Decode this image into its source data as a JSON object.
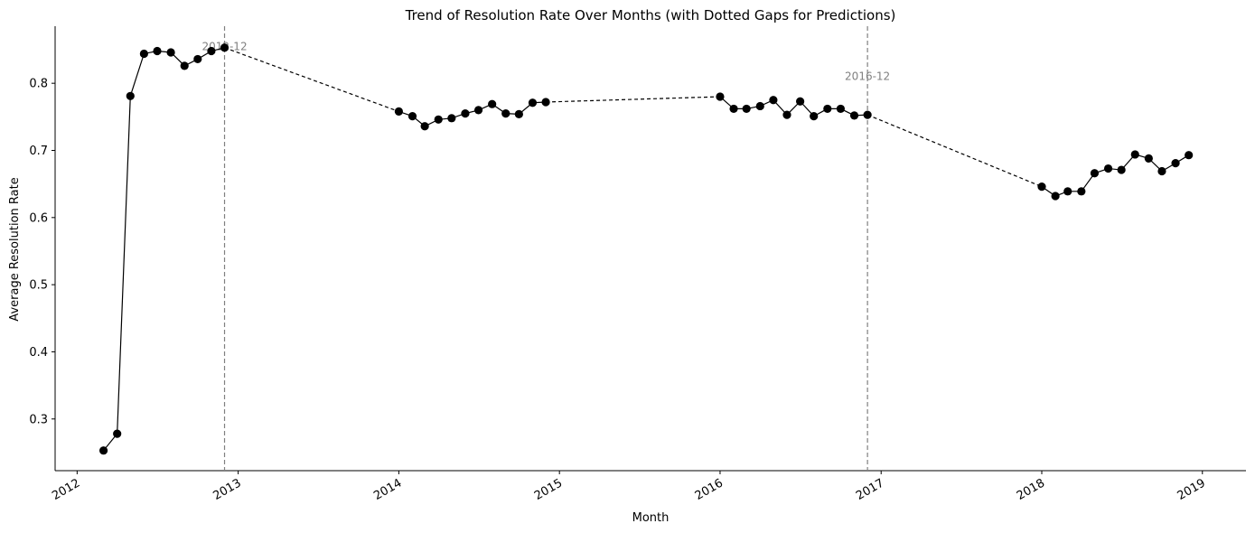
{
  "chart_data": {
    "type": "line",
    "title": "Trend of Resolution Rate Over Months (with Dotted Gaps for Predictions)",
    "xlabel": "Month",
    "ylabel": "Average Resolution Rate",
    "xlim": [
      "2011-11-12",
      "2019-04-10"
    ],
    "ylim": [
      0.223,
      0.885
    ],
    "x_ticks": [
      "2012",
      "2013",
      "2014",
      "2015",
      "2016",
      "2017",
      "2018",
      "2019"
    ],
    "y_ticks": [
      "0.3",
      "0.4",
      "0.5",
      "0.6",
      "0.7",
      "0.8"
    ],
    "grid": false,
    "line_color": "#000000",
    "marker_color": "#000000",
    "annotation_color": "#808080",
    "annotations": [
      {
        "x": "2012-12-01",
        "label": "2012-12",
        "label_y": 0.855
      },
      {
        "x": "2016-12-01",
        "label": "2016-12",
        "label_y": 0.81
      }
    ],
    "segments": [
      {
        "x": [
          "2012-03-01",
          "2012-04-01",
          "2012-05-01",
          "2012-06-01",
          "2012-07-01",
          "2012-08-01",
          "2012-09-01",
          "2012-10-01",
          "2012-11-01",
          "2012-12-01"
        ],
        "y": [
          0.253,
          0.278,
          0.781,
          0.844,
          0.848,
          0.846,
          0.826,
          0.836,
          0.848,
          0.853
        ]
      },
      {
        "x": [
          "2014-01-01",
          "2014-02-01",
          "2014-03-01",
          "2014-04-01",
          "2014-05-01",
          "2014-06-01",
          "2014-07-01",
          "2014-08-01",
          "2014-09-01",
          "2014-10-01",
          "2014-11-01",
          "2014-12-01"
        ],
        "y": [
          0.758,
          0.751,
          0.736,
          0.746,
          0.748,
          0.755,
          0.76,
          0.769,
          0.755,
          0.754,
          0.771,
          0.772
        ]
      },
      {
        "x": [
          "2016-01-01",
          "2016-02-01",
          "2016-03-01",
          "2016-04-01",
          "2016-05-01",
          "2016-06-01",
          "2016-07-01",
          "2016-08-01",
          "2016-09-01",
          "2016-10-01",
          "2016-11-01",
          "2016-12-01"
        ],
        "y": [
          0.78,
          0.762,
          0.762,
          0.766,
          0.775,
          0.753,
          0.773,
          0.751,
          0.762,
          0.762,
          0.752,
          0.753
        ]
      },
      {
        "x": [
          "2018-01-01",
          "2018-02-01",
          "2018-03-01",
          "2018-04-01",
          "2018-05-01",
          "2018-06-01",
          "2018-07-01",
          "2018-08-01",
          "2018-09-01",
          "2018-10-01",
          "2018-11-01",
          "2018-12-01"
        ],
        "y": [
          0.646,
          0.632,
          0.639,
          0.639,
          0.666,
          0.673,
          0.671,
          0.694,
          0.688,
          0.669,
          0.681,
          0.693
        ]
      }
    ]
  }
}
